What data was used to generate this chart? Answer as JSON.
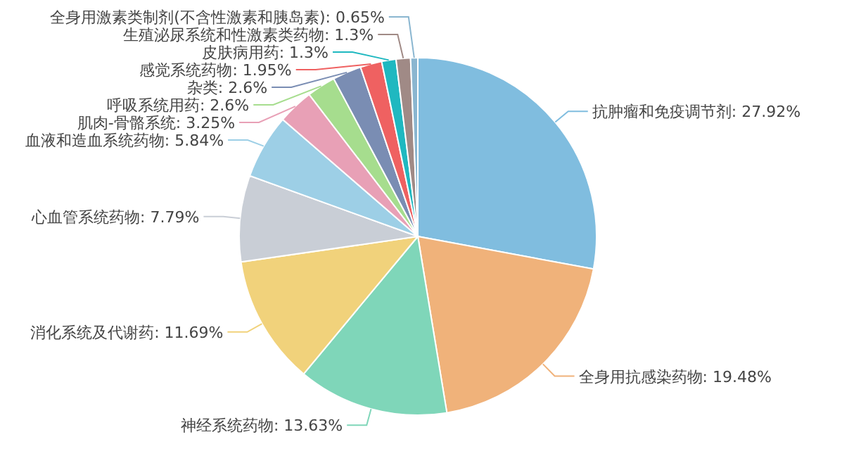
{
  "chart_data": {
    "type": "pie",
    "categories": [
      "抗肿瘤和免疫调节剂",
      "全身用抗感染药物",
      "神经系统药物",
      "消化系统及代谢药",
      "心血管系统药物",
      "血液和造血系统药物",
      "肌肉-骨骼系统",
      "呼吸系统用药",
      "杂类",
      "感觉系统药物",
      "皮肤病用药",
      "生殖泌尿系统和性激素类药物",
      "全身用激素类制剂(不含性激素和胰岛素)"
    ],
    "values": [
      27.92,
      19.48,
      13.63,
      11.69,
      7.79,
      5.84,
      3.25,
      2.6,
      2.6,
      1.95,
      1.3,
      1.3,
      0.65
    ],
    "value_labels": [
      "27.92%",
      "19.48%",
      "13.63%",
      "11.69%",
      "7.79%",
      "5.84%",
      "3.25%",
      "2.6%",
      "2.6%",
      "1.95%",
      "1.3%",
      "1.3%",
      "0.65%"
    ],
    "colors": [
      "#80bddf",
      "#f0b27a",
      "#7fd6b9",
      "#f1d27b",
      "#c9ced6",
      "#9dcfe6",
      "#e8a0b6",
      "#a6dd8e",
      "#7a8db3",
      "#ef6161",
      "#1fb8c0",
      "#a08a86",
      "#8ab6d0"
    ]
  }
}
